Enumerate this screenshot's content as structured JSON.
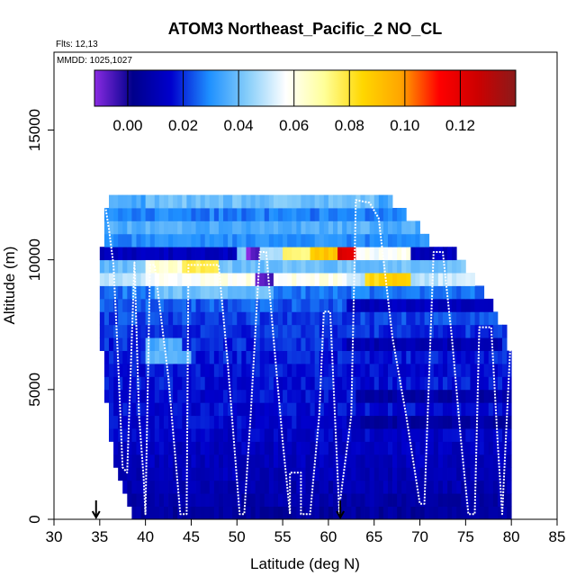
{
  "chart_data": {
    "type": "heatmap",
    "title": "ATOM3 Northeast_Pacific_2 NO_CL",
    "flights_label": "Flts: 12,13",
    "date_label": "MMDD: 1025,1027",
    "xlabel": "Latitude (deg N)",
    "ylabel": "Altitude (m)",
    "xlim": [
      30,
      85
    ],
    "ylim": [
      0,
      18000
    ],
    "xticks": [
      "30",
      "35",
      "40",
      "45",
      "50",
      "55",
      "60",
      "65",
      "70",
      "75",
      "80",
      "85"
    ],
    "yticks": [
      "0",
      "5000",
      "10000",
      "15000"
    ],
    "colorbar": {
      "range": [
        -0.012,
        0.14
      ],
      "ticks": [
        "0.00",
        "0.02",
        "0.04",
        "0.06",
        "0.08",
        "0.10",
        "0.12"
      ],
      "tick_values": [
        0,
        0.02,
        0.04,
        0.06,
        0.08,
        0.1,
        0.12
      ],
      "colors": [
        "#8a2be2",
        "#00008b",
        "#0000cd",
        "#1e90ff",
        "#87cefa",
        "#ffffff",
        "#ffff99",
        "#ffd700",
        "#ffa500",
        "#ff0000",
        "#cd0000",
        "#8b1a1a"
      ]
    },
    "arrows_x": [
      34.6,
      61.3
    ],
    "grid_bin": {
      "dlat": 0.5,
      "dalt": 500
    },
    "altitude_rows": [
      {
        "alt": 250,
        "lat": [
          38.5,
          80
        ],
        "value": 0.006
      },
      {
        "alt": 750,
        "lat": [
          38,
          80
        ],
        "value": 0.008
      },
      {
        "alt": 1250,
        "lat": [
          37.5,
          80
        ],
        "value": 0.01
      },
      {
        "alt": 1750,
        "lat": [
          37,
          80
        ],
        "value": 0.011
      },
      {
        "alt": 2250,
        "lat": [
          36.5,
          80
        ],
        "value": 0.012
      },
      {
        "alt": 2750,
        "lat": [
          36.5,
          80
        ],
        "value": 0.013
      },
      {
        "alt": 3250,
        "lat": [
          36,
          80
        ],
        "value": 0.014
      },
      {
        "alt": 3750,
        "lat": [
          36,
          80
        ],
        "value": 0.015
      },
      {
        "alt": 4250,
        "lat": [
          36,
          80
        ],
        "value": 0.016
      },
      {
        "alt": 4750,
        "lat": [
          35.5,
          80
        ],
        "value": 0.016
      },
      {
        "alt": 5250,
        "lat": [
          35.5,
          80
        ],
        "value": 0.017
      },
      {
        "alt": 5750,
        "lat": [
          35.5,
          80
        ],
        "value": 0.017
      },
      {
        "alt": 6250,
        "lat": [
          35.5,
          80
        ],
        "value": 0.018
      },
      {
        "alt": 6750,
        "lat": [
          35,
          79.5
        ],
        "value": 0.019
      },
      {
        "alt": 7250,
        "lat": [
          35,
          79.5
        ],
        "value": 0.02
      },
      {
        "alt": 7750,
        "lat": [
          35,
          78.5
        ],
        "value": 0.022
      },
      {
        "alt": 8250,
        "lat": [
          35,
          78
        ],
        "value": 0.024
      },
      {
        "alt": 8750,
        "lat": [
          35,
          77
        ],
        "value": 0.027
      },
      {
        "alt": 9250,
        "lat": [
          35,
          76
        ],
        "value": 0.05
      },
      {
        "alt": 9750,
        "lat": [
          35,
          75
        ],
        "value": 0.04
      },
      {
        "alt": 10250,
        "lat": [
          35,
          74
        ],
        "value": 0.012
      },
      {
        "alt": 10750,
        "lat": [
          35.5,
          71
        ],
        "value": 0.03
      },
      {
        "alt": 11250,
        "lat": [
          35.5,
          70
        ],
        "value": 0.036
      },
      {
        "alt": 11750,
        "lat": [
          35.5,
          68.5
        ],
        "value": 0.028
      },
      {
        "alt": 12250,
        "lat": [
          36,
          67
        ],
        "value": 0.034
      }
    ],
    "highlights": [
      {
        "alt": 9750,
        "lat": [
          40,
          48
        ],
        "value": 0.078
      },
      {
        "alt": 9750,
        "lat": [
          40,
          44
        ],
        "value": 0.062
      },
      {
        "alt": 10250,
        "lat": [
          58,
          61
        ],
        "value": 0.09
      },
      {
        "alt": 10250,
        "lat": [
          61,
          63
        ],
        "value": 0.12
      },
      {
        "alt": 10250,
        "lat": [
          55,
          58
        ],
        "value": 0.075
      },
      {
        "alt": 10250,
        "lat": [
          50,
          55
        ],
        "value": 0.045
      },
      {
        "alt": 10250,
        "lat": [
          63,
          69
        ],
        "value": 0.058
      },
      {
        "alt": 9250,
        "lat": [
          64,
          69
        ],
        "value": 0.085
      },
      {
        "alt": 9250,
        "lat": [
          40,
          48
        ],
        "value": 0.058
      },
      {
        "alt": 9250,
        "lat": [
          48,
          62
        ],
        "value": 0.06
      },
      {
        "alt": 8750,
        "lat": [
          41,
          54
        ],
        "value": 0.04
      },
      {
        "alt": 9250,
        "lat": [
          52,
          54
        ],
        "value": -0.008
      },
      {
        "alt": 10250,
        "lat": [
          51,
          52.5
        ],
        "value": -0.008
      },
      {
        "alt": 6250,
        "lat": [
          40,
          45
        ],
        "value": 0.038
      },
      {
        "alt": 6750,
        "lat": [
          40,
          44
        ],
        "value": 0.036
      },
      {
        "alt": 12250,
        "lat": [
          40,
          65
        ],
        "value": 0.04
      },
      {
        "alt": 4750,
        "lat": [
          63,
          80
        ],
        "value": 0.008
      },
      {
        "alt": 6750,
        "lat": [
          62,
          79
        ],
        "value": 0.01
      },
      {
        "alt": 8250,
        "lat": [
          62,
          78
        ],
        "value": 0.012
      },
      {
        "alt": 3750,
        "lat": [
          62,
          80
        ],
        "value": 0.007
      }
    ],
    "flight_track": [
      [
        35.5,
        12300
      ],
      [
        36.0,
        11200
      ],
      [
        36.5,
        9800
      ],
      [
        37.0,
        6200
      ],
      [
        37.5,
        2000
      ],
      [
        38.0,
        1800
      ],
      [
        38.8,
        9900
      ],
      [
        39.3,
        4000
      ],
      [
        39.8,
        1600
      ],
      [
        40.0,
        200
      ],
      [
        40.5,
        9800
      ],
      [
        41.0,
        9800
      ],
      [
        42.5,
        5500
      ],
      [
        43.8,
        200
      ],
      [
        44.5,
        200
      ],
      [
        44.7,
        9800
      ],
      [
        48.0,
        9800
      ],
      [
        49.0,
        6000
      ],
      [
        50.3,
        200
      ],
      [
        50.8,
        200
      ],
      [
        51.5,
        4000
      ],
      [
        52.5,
        10300
      ],
      [
        53.2,
        10300
      ],
      [
        54.0,
        7000
      ],
      [
        55.0,
        3000
      ],
      [
        55.8,
        200
      ],
      [
        55.8,
        1800
      ],
      [
        57.0,
        1800
      ],
      [
        57.0,
        200
      ],
      [
        58.0,
        200
      ],
      [
        59.0,
        4000
      ],
      [
        59.5,
        8000
      ],
      [
        60.2,
        8000
      ],
      [
        61.2,
        200
      ],
      [
        61.2,
        500
      ],
      [
        62.5,
        4000
      ],
      [
        63.0,
        12300
      ],
      [
        64.5,
        12200
      ],
      [
        65.5,
        11600
      ],
      [
        67.0,
        7000
      ],
      [
        68.5,
        4000
      ],
      [
        70.0,
        600
      ],
      [
        70.5,
        600
      ],
      [
        71.5,
        10300
      ],
      [
        72.5,
        10300
      ],
      [
        73.5,
        7000
      ],
      [
        74.5,
        3000
      ],
      [
        75.3,
        200
      ],
      [
        76.0,
        200
      ],
      [
        76.5,
        7400
      ],
      [
        77.8,
        7400
      ],
      [
        78.5,
        3000
      ],
      [
        79.0,
        200
      ],
      [
        80.0,
        7500
      ]
    ]
  }
}
